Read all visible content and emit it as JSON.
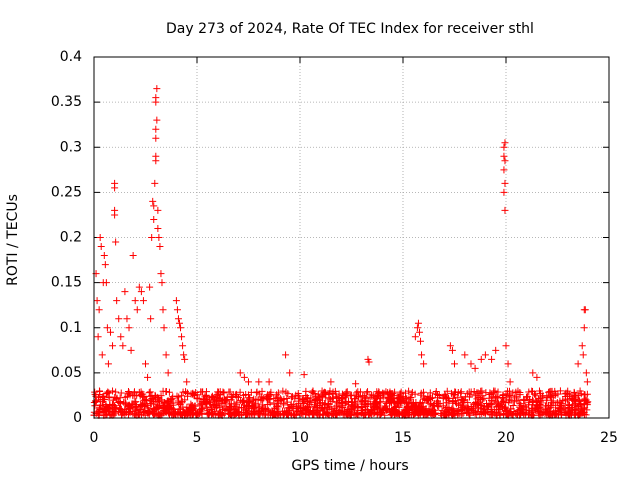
{
  "chart_data": {
    "type": "scatter",
    "title": "Day 273 of 2024, Rate Of TEC Index for receiver sthl",
    "xlabel": "GPS time / hours",
    "ylabel": "ROTI / TECUs",
    "xlim": [
      0,
      25
    ],
    "ylim": [
      0,
      0.4
    ],
    "xticks": [
      0,
      5,
      10,
      15,
      20,
      25
    ],
    "yticks": [
      0,
      0.05,
      0.1,
      0.15,
      0.2,
      0.25,
      0.3,
      0.35,
      0.4
    ],
    "xtick_labels": [
      "0",
      "5",
      "10",
      "15",
      "20",
      "25"
    ],
    "ytick_labels": [
      "0",
      "0.05",
      "0.1",
      "0.15",
      "0.2",
      "0.25",
      "0.3",
      "0.35",
      "0.4"
    ],
    "grid": true,
    "marker": "+",
    "color": "#ff0000",
    "series": [
      {
        "name": "ROTI",
        "points": [
          [
            0.1,
            0.16
          ],
          [
            0.15,
            0.13
          ],
          [
            0.2,
            0.09
          ],
          [
            0.25,
            0.12
          ],
          [
            0.3,
            0.2
          ],
          [
            0.35,
            0.19
          ],
          [
            0.4,
            0.07
          ],
          [
            0.45,
            0.15
          ],
          [
            0.5,
            0.18
          ],
          [
            0.55,
            0.17
          ],
          [
            0.6,
            0.15
          ],
          [
            0.65,
            0.1
          ],
          [
            0.7,
            0.06
          ],
          [
            0.8,
            0.095
          ],
          [
            0.9,
            0.08
          ],
          [
            1.0,
            0.26
          ],
          [
            1.0,
            0.255
          ],
          [
            1.0,
            0.23
          ],
          [
            1.0,
            0.225
          ],
          [
            1.05,
            0.195
          ],
          [
            1.1,
            0.13
          ],
          [
            1.2,
            0.11
          ],
          [
            1.3,
            0.09
          ],
          [
            1.4,
            0.08
          ],
          [
            1.5,
            0.14
          ],
          [
            1.6,
            0.11
          ],
          [
            1.7,
            0.1
          ],
          [
            1.8,
            0.075
          ],
          [
            1.9,
            0.18
          ],
          [
            2.0,
            0.13
          ],
          [
            2.1,
            0.12
          ],
          [
            2.2,
            0.145
          ],
          [
            2.3,
            0.14
          ],
          [
            2.4,
            0.13
          ],
          [
            2.5,
            0.06
          ],
          [
            2.6,
            0.045
          ],
          [
            2.7,
            0.145
          ],
          [
            2.75,
            0.11
          ],
          [
            2.8,
            0.2
          ],
          [
            2.85,
            0.24
          ],
          [
            2.9,
            0.235
          ],
          [
            2.9,
            0.22
          ],
          [
            2.95,
            0.26
          ],
          [
            3.0,
            0.29
          ],
          [
            3.0,
            0.285
          ],
          [
            3.0,
            0.31
          ],
          [
            3.0,
            0.32
          ],
          [
            3.05,
            0.33
          ],
          [
            3.0,
            0.35
          ],
          [
            3.0,
            0.355
          ],
          [
            3.05,
            0.365
          ],
          [
            3.1,
            0.23
          ],
          [
            3.1,
            0.21
          ],
          [
            3.15,
            0.2
          ],
          [
            3.2,
            0.19
          ],
          [
            3.25,
            0.16
          ],
          [
            3.3,
            0.15
          ],
          [
            3.35,
            0.12
          ],
          [
            3.4,
            0.1
          ],
          [
            3.5,
            0.07
          ],
          [
            3.6,
            0.05
          ],
          [
            4.0,
            0.13
          ],
          [
            4.05,
            0.12
          ],
          [
            4.1,
            0.11
          ],
          [
            4.15,
            0.105
          ],
          [
            4.2,
            0.1
          ],
          [
            4.25,
            0.09
          ],
          [
            4.3,
            0.08
          ],
          [
            4.35,
            0.07
          ],
          [
            4.4,
            0.065
          ],
          [
            4.5,
            0.04
          ],
          [
            7.1,
            0.05
          ],
          [
            7.3,
            0.045
          ],
          [
            7.5,
            0.04
          ],
          [
            8.0,
            0.04
          ],
          [
            8.5,
            0.04
          ],
          [
            9.3,
            0.07
          ],
          [
            9.5,
            0.05
          ],
          [
            10.2,
            0.048
          ],
          [
            11.5,
            0.04
          ],
          [
            12.7,
            0.038
          ],
          [
            13.3,
            0.065
          ],
          [
            13.35,
            0.062
          ],
          [
            15.6,
            0.09
          ],
          [
            15.7,
            0.1
          ],
          [
            15.75,
            0.105
          ],
          [
            15.8,
            0.095
          ],
          [
            15.85,
            0.085
          ],
          [
            15.9,
            0.07
          ],
          [
            16.0,
            0.06
          ],
          [
            17.3,
            0.08
          ],
          [
            17.4,
            0.075
          ],
          [
            17.5,
            0.06
          ],
          [
            18.0,
            0.07
          ],
          [
            18.3,
            0.06
          ],
          [
            18.5,
            0.055
          ],
          [
            18.8,
            0.065
          ],
          [
            19.0,
            0.07
          ],
          [
            19.3,
            0.065
          ],
          [
            19.5,
            0.075
          ],
          [
            19.9,
            0.3
          ],
          [
            19.95,
            0.305
          ],
          [
            19.9,
            0.29
          ],
          [
            19.95,
            0.285
          ],
          [
            19.9,
            0.275
          ],
          [
            19.95,
            0.26
          ],
          [
            19.9,
            0.25
          ],
          [
            19.95,
            0.23
          ],
          [
            20.0,
            0.08
          ],
          [
            20.1,
            0.06
          ],
          [
            20.2,
            0.04
          ],
          [
            21.3,
            0.05
          ],
          [
            21.5,
            0.045
          ],
          [
            23.5,
            0.06
          ],
          [
            23.7,
            0.08
          ],
          [
            23.8,
            0.12
          ],
          [
            23.85,
            0.12
          ],
          [
            23.8,
            0.1
          ],
          [
            23.75,
            0.07
          ],
          [
            23.9,
            0.05
          ],
          [
            23.95,
            0.04
          ]
        ]
      }
    ],
    "background": {
      "description": "dense band of low ROTI values across all 24 hours",
      "x_range": [
        0,
        24
      ],
      "y_range": [
        0.003,
        0.03
      ]
    }
  }
}
